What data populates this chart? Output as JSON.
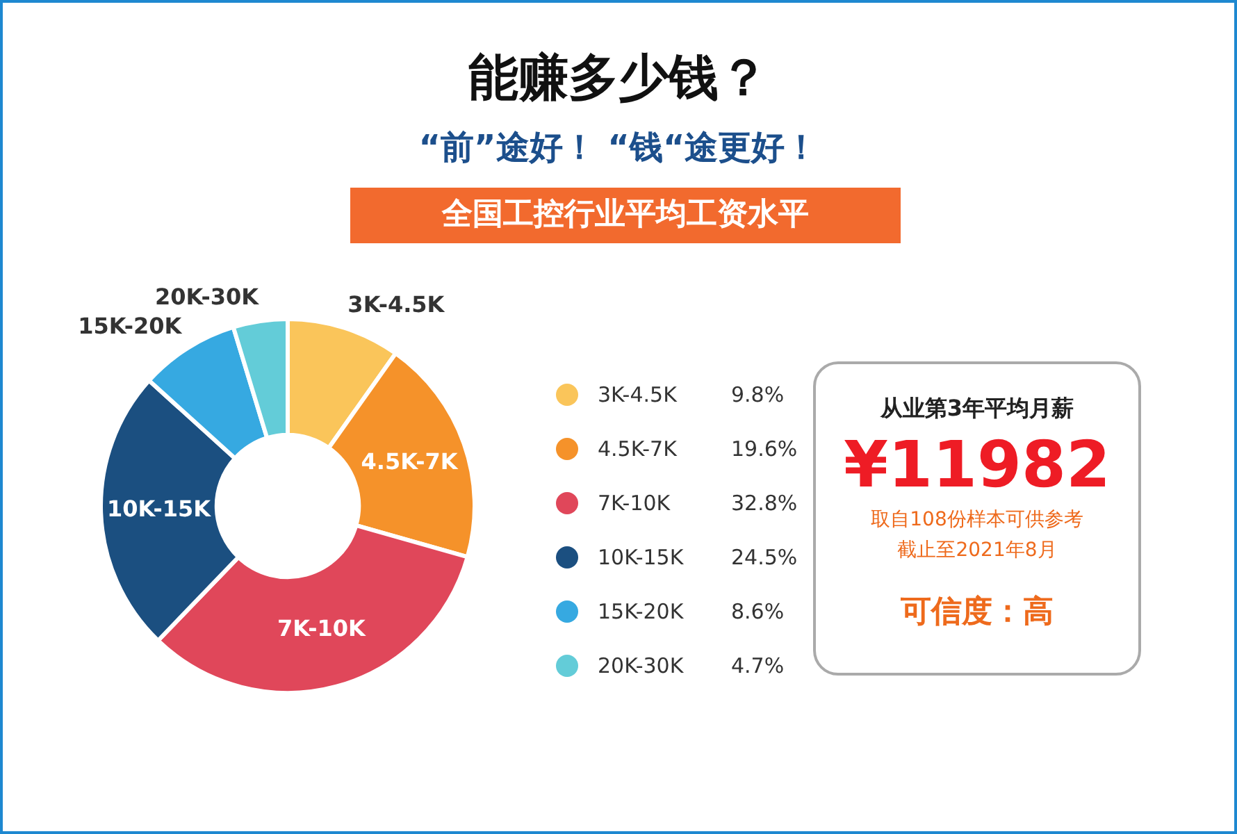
{
  "chart_data": {
    "type": "donut",
    "title": "能赚多少钱？",
    "subtitle": "“前”途好！ “钱“途更好！",
    "categories": [
      "3K-4.5K",
      "4.5K-7K",
      "7K-10K",
      "10K-15K",
      "15K-20K",
      "20K-30K"
    ],
    "values": [
      9.8,
      19.6,
      32.8,
      24.5,
      8.6,
      4.7
    ],
    "value_labels": [
      "9.8%",
      "19.6%",
      "32.8%",
      "24.5%",
      "8.6%",
      "4.7%"
    ],
    "colors": [
      "#fac55a",
      "#f5922a",
      "#e0475a",
      "#1b4f80",
      "#36a9e1",
      "#63ccd8"
    ],
    "legend": "right",
    "annotations": [
      "全国工控行业平均工资水平",
      "从业第3年平均月薪",
      "¥11982",
      "取自108份样本可供参考",
      "截止至2021年8月",
      "可信度：高"
    ]
  }
}
